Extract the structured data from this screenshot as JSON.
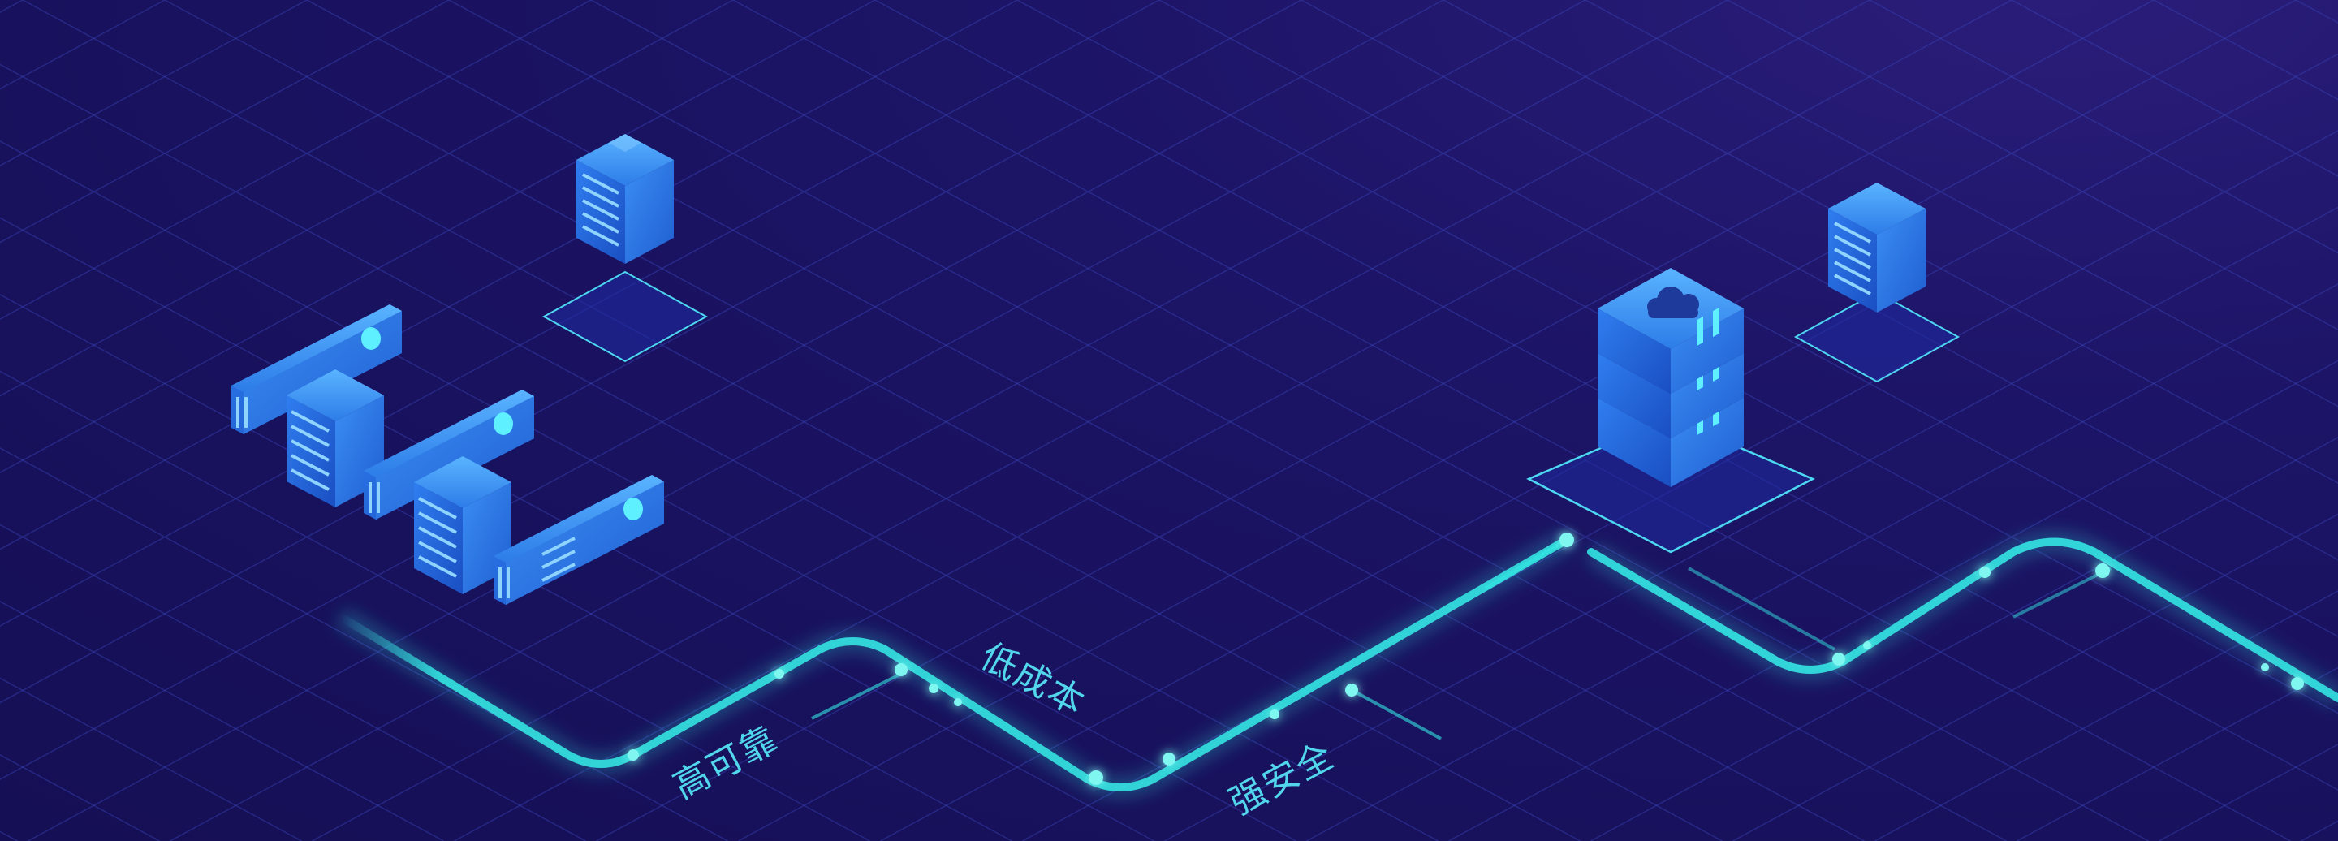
{
  "banner": {
    "labels": {
      "reliable": "高可靠",
      "low_cost": "低成本",
      "secure": "强安全"
    },
    "icons": {
      "cloud": "cloud-icon",
      "server": "server-rack-icon"
    },
    "colors": {
      "background_dark": "#150f55",
      "background_light": "#2a1d7a",
      "grid_line": "#3a44b8",
      "accent_cyan": "#33e4e2",
      "label_cyan": "#52d6ec",
      "server_blue": "#2a6fe0",
      "server_light": "#49a5ff"
    }
  }
}
